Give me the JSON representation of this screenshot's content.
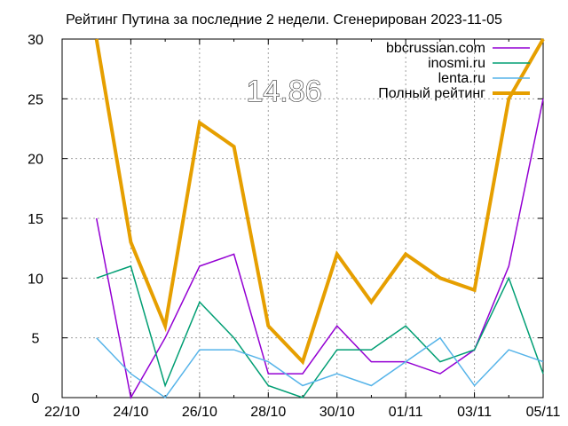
{
  "chart_data": {
    "type": "line",
    "title": "Рейтинг Путина за последние 2 недели. Сгенерирован 2023-11-05",
    "annotation": "14.86",
    "xlabel": "",
    "ylabel": "",
    "x": [
      "2023-10-23",
      "2023-10-24",
      "2023-10-25",
      "2023-10-26",
      "2023-10-27",
      "2023-10-28",
      "2023-10-29",
      "2023-10-30",
      "2023-10-31",
      "2023-11-01",
      "2023-11-02",
      "2023-11-03",
      "2023-11-04",
      "2023-11-05"
    ],
    "xlim": [
      "2023-10-22",
      "2023-11-05"
    ],
    "ylim": [
      0,
      30
    ],
    "x_ticks": [
      "22/10",
      "24/10",
      "26/10",
      "28/10",
      "30/10",
      "01/11",
      "03/11",
      "05/11"
    ],
    "y_ticks": [
      "0",
      "5",
      "10",
      "15",
      "20",
      "25",
      "30"
    ],
    "grid": true,
    "legend_position": "top-right",
    "series": [
      {
        "name": "bbcrussian.com",
        "color": "#9400d3",
        "values": [
          15,
          0,
          5,
          11,
          12,
          2,
          2,
          6,
          3,
          3,
          2,
          4,
          11,
          25
        ]
      },
      {
        "name": "inosmi.ru",
        "color": "#009e73",
        "values": [
          10,
          11,
          1,
          8,
          5,
          1,
          0,
          4,
          4,
          6,
          3,
          4,
          10,
          2
        ]
      },
      {
        "name": "lenta.ru",
        "color": "#56b4e9",
        "values": [
          5,
          2,
          0,
          4,
          4,
          3,
          1,
          2,
          1,
          3,
          5,
          1,
          4,
          3
        ]
      },
      {
        "name": "Полный рейтинг",
        "color": "#e69f00",
        "values": [
          30,
          13,
          6,
          23,
          21,
          6,
          3,
          12,
          8,
          12,
          10,
          9,
          25,
          30
        ]
      }
    ]
  }
}
